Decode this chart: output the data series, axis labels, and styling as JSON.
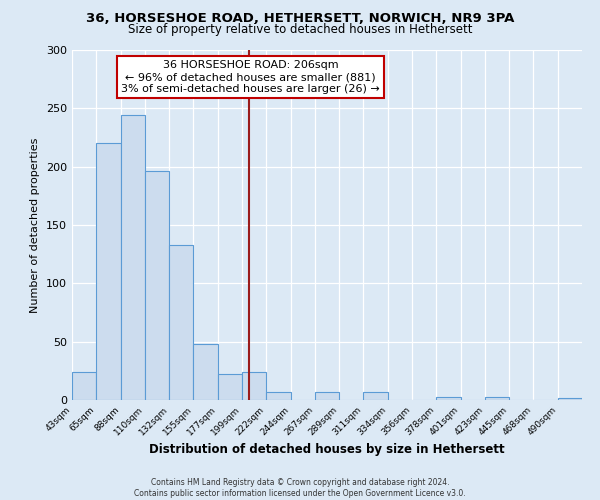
{
  "title_line1": "36, HORSESHOE ROAD, HETHERSETT, NORWICH, NR9 3PA",
  "title_line2": "Size of property relative to detached houses in Hethersett",
  "xlabel": "Distribution of detached houses by size in Hethersett",
  "ylabel": "Number of detached properties",
  "bar_labels": [
    "43sqm",
    "65sqm",
    "88sqm",
    "110sqm",
    "132sqm",
    "155sqm",
    "177sqm",
    "199sqm",
    "222sqm",
    "244sqm",
    "267sqm",
    "289sqm",
    "311sqm",
    "334sqm",
    "356sqm",
    "378sqm",
    "401sqm",
    "423sqm",
    "445sqm",
    "468sqm",
    "490sqm"
  ],
  "bar_values": [
    24,
    220,
    244,
    196,
    133,
    48,
    22,
    24,
    7,
    0,
    7,
    0,
    7,
    0,
    0,
    3,
    0,
    3,
    0,
    0,
    2
  ],
  "bar_color": "#ccdcee",
  "bar_edge_color": "#5b9bd5",
  "marker_color": "#9b1c1c",
  "annotation_title": "36 HORSESHOE ROAD: 206sqm",
  "annotation_line2": "← 96% of detached houses are smaller (881)",
  "annotation_line3": "3% of semi-detached houses are larger (26) →",
  "annotation_box_color": "#ffffff",
  "annotation_box_edge": "#c00000",
  "footer_line1": "Contains HM Land Registry data © Crown copyright and database right 2024.",
  "footer_line2": "Contains public sector information licensed under the Open Government Licence v3.0.",
  "ylim": [
    0,
    300
  ],
  "background_color": "#dce9f5",
  "plot_background": "#dce9f5",
  "yticks": [
    0,
    50,
    100,
    150,
    200,
    250,
    300
  ]
}
